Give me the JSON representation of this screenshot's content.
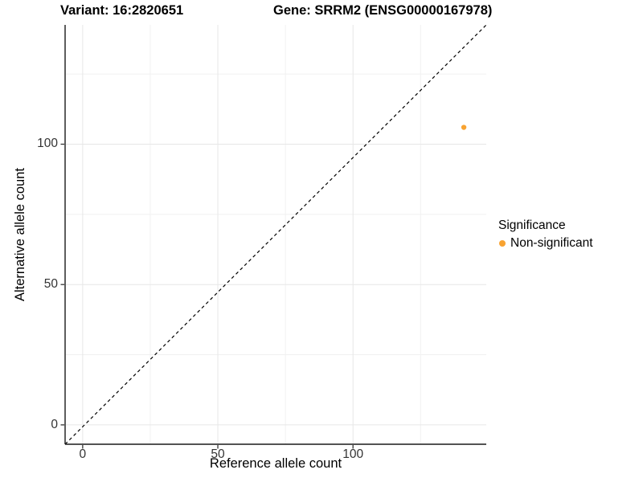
{
  "figure": {
    "title_left": "Variant: 16:2820651",
    "title_right": "Gene: SRRM2 (ENSG00000167978)"
  },
  "chart_data": {
    "type": "scatter",
    "title": "Variant: 16:2820651   Gene: SRRM2 (ENSG00000167978)",
    "xlabel": "Reference allele count",
    "ylabel": "Alternative allele count",
    "x_ticks": [
      0,
      50,
      100
    ],
    "y_ticks": [
      0,
      50,
      100
    ],
    "x_minor_ticks": [
      25,
      75,
      125
    ],
    "y_minor_ticks": [
      25,
      75,
      125
    ],
    "xlim": [
      -6.5,
      149.3
    ],
    "ylim": [
      -6.9,
      142.5
    ],
    "grid": true,
    "reference_line": {
      "slope": 1,
      "intercept": 0,
      "style": "dashed",
      "color": "#000000"
    },
    "series": [
      {
        "name": "Non-significant",
        "color": "#F8A331",
        "points": [
          {
            "x": 141,
            "y": 106
          }
        ]
      }
    ],
    "legend": {
      "title": "Significance",
      "position": "right",
      "entries": [
        {
          "label": "Non-significant",
          "color": "#F8A331"
        }
      ]
    }
  },
  "colors": {
    "point_orange": "#F8A331",
    "grid_major": "#E7E7E7",
    "grid_minor": "#F1F1F1",
    "axis_line": "#1a1a1a",
    "tick_mark": "#333333"
  }
}
